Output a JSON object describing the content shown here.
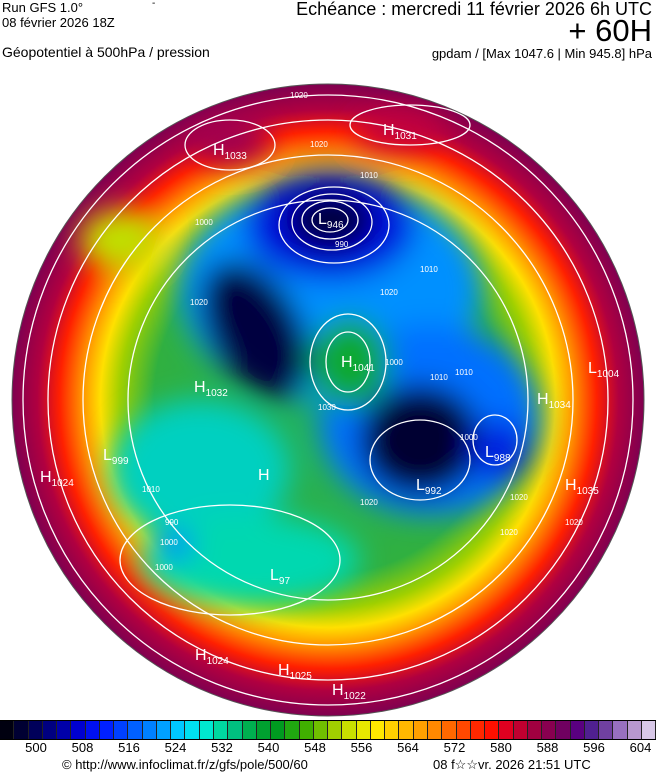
{
  "header": {
    "run": "Run GFS 1.0°",
    "run_date": "08 février 2026 18Z",
    "marker": "-",
    "title": "Géopotentiel à 500hPa / pression",
    "valid": "Echéance : mercredi 11 février 2026 6h UTC",
    "lead": "+ 60H",
    "units": "gpdam / [Max 1047.6 | Min 945.8] hPa"
  },
  "systems": [
    {
      "type": "H",
      "value": "1033"
    },
    {
      "type": "H",
      "value": "1031"
    },
    {
      "type": "L",
      "value": "946"
    },
    {
      "type": "H",
      "value": "1041"
    },
    {
      "type": "H",
      "value": "1032"
    },
    {
      "type": "L",
      "value": "999"
    },
    {
      "type": "H",
      "value": "1024"
    },
    {
      "type": "H",
      "value": ""
    },
    {
      "type": "L",
      "value": "97"
    },
    {
      "type": "H",
      "value": "1024"
    },
    {
      "type": "H",
      "value": "1025"
    },
    {
      "type": "H",
      "value": "1022"
    },
    {
      "type": "L",
      "value": "992"
    },
    {
      "type": "L",
      "value": "988"
    },
    {
      "type": "H",
      "value": "1035"
    },
    {
      "type": "L",
      "value": "1004"
    },
    {
      "type": "H",
      "value": "1034"
    }
  ],
  "isobar_labels": [
    "1020",
    "1020",
    "1010",
    "1000",
    "990",
    "1010",
    "1020",
    "1020",
    "1010",
    "1000",
    "990",
    "1000",
    "1010",
    "1020",
    "1000",
    "1000",
    "1020",
    "1030",
    "1010",
    "1020",
    "1020"
  ],
  "colorbar": {
    "ticks": [
      "500",
      "508",
      "516",
      "524",
      "532",
      "540",
      "548",
      "556",
      "564",
      "572",
      "580",
      "588",
      "596",
      "604"
    ],
    "colors": [
      "#000010",
      "#000033",
      "#00005a",
      "#000080",
      "#0000a8",
      "#0000d0",
      "#0010f0",
      "#0020ff",
      "#0040ff",
      "#0060ff",
      "#0080ff",
      "#00a0ff",
      "#00c8ff",
      "#00e0f0",
      "#00e8d0",
      "#00d8a0",
      "#00c080",
      "#00b050",
      "#00a030",
      "#009a20",
      "#20a810",
      "#40b000",
      "#70c000",
      "#a0d000",
      "#c8e000",
      "#e8e800",
      "#ffe800",
      "#ffd000",
      "#ffb800",
      "#ffa000",
      "#ff8800",
      "#ff6800",
      "#ff4800",
      "#ff2800",
      "#ff1000",
      "#e00020",
      "#c00030",
      "#a00040",
      "#880050",
      "#700060",
      "#5a0080",
      "#502090",
      "#7040a0",
      "#9870c0",
      "#b898d0",
      "#d8c8e8"
    ]
  },
  "footer": {
    "copyright": "© http://www.infoclimat.fr/z/gfs/pole/500/60",
    "generated": "08 f☆☆vr. 2026 21:51 UTC"
  }
}
